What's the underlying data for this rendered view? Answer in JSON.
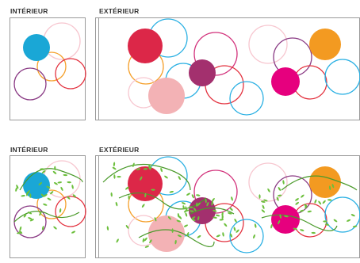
{
  "labels": {
    "top_left": "INTÉRIEUR",
    "top_right": "EXTÉRIEUR",
    "bottom_left": "INTÉRIEUR",
    "bottom_right": "EXTÉRIEUR"
  },
  "colors": {
    "frame": "#9a9a9a",
    "vine": "#4a9a2a",
    "leaf": "#6cbf3c",
    "cyan": "#1aa7d6",
    "crimson": "#dc2748",
    "magenta": "#a3306e",
    "pink": "#e6007e",
    "salmon": "#f3b2b5",
    "orange": "#f39a21",
    "ring_blue": "#2ab0e3",
    "ring_red": "#e3323f",
    "ring_orange": "#f5a02c",
    "ring_purple": "#8a3a84",
    "ring_lightpink": "#f7c6cf",
    "ring_magenta": "#d2317b"
  }
}
